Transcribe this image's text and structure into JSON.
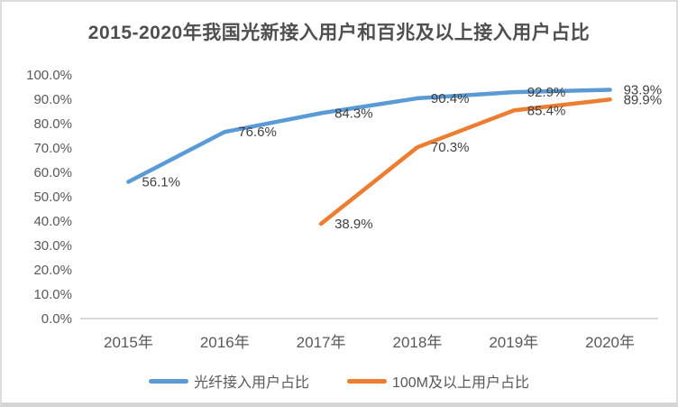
{
  "title": "2015-2020年我国光新接入用户和百兆及以上接入用户占比",
  "chart_data": {
    "type": "line",
    "title": "2015-2020年我国光新接入用户和百兆及以上接入用户占比",
    "categories": [
      "2015年",
      "2016年",
      "2017年",
      "2018年",
      "2019年",
      "2020年"
    ],
    "series": [
      {
        "name": "光纤接入用户占比",
        "color": "#5B9BD5",
        "values": [
          56.1,
          76.6,
          84.3,
          90.4,
          92.9,
          93.9
        ],
        "point_labels": [
          "56.1%",
          "76.6%",
          "84.3%",
          "90.4%",
          "92.9%",
          "93.9%"
        ]
      },
      {
        "name": "100M及以上用户占比",
        "color": "#ED7D31",
        "values": [
          null,
          null,
          38.9,
          70.3,
          85.4,
          89.9
        ],
        "point_labels": [
          null,
          null,
          "38.9%",
          "70.3%",
          "85.4%",
          "89.9%"
        ]
      }
    ],
    "xlabel": "",
    "ylabel": "",
    "y_axis": {
      "min": 0,
      "max": 100,
      "step": 10,
      "tick_labels": [
        "0.0%",
        "10.0%",
        "20.0%",
        "30.0%",
        "40.0%",
        "50.0%",
        "60.0%",
        "70.0%",
        "80.0%",
        "90.0%",
        "100.0%"
      ]
    },
    "grid": false,
    "legend_position": "bottom",
    "colors": {
      "axis_line": "#D9D9D9",
      "axis_text": "#595959",
      "data_label_text": "#404040"
    }
  }
}
